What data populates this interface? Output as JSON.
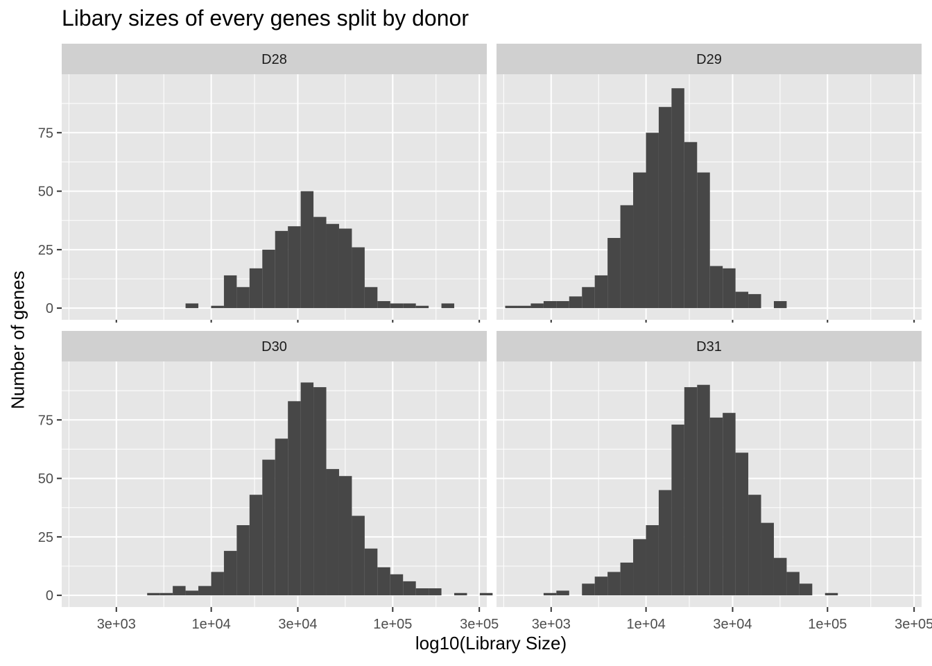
{
  "title": "Libary sizes of every genes split by donor",
  "xlabel": "log10(Library Size)",
  "ylabel": "Number of genes",
  "colors": {
    "bar": "#474747",
    "panel_bg": "#e6e6e6",
    "strip_bg": "#d0d0d0",
    "grid": "#ffffff"
  },
  "chart_data": {
    "type": "bar",
    "x_scale": "log10",
    "xlim": [
      1500,
      330000
    ],
    "ylim": [
      -5,
      100
    ],
    "x_ticks": [
      3000,
      10000,
      30000,
      100000,
      300000
    ],
    "x_tick_labels": [
      "3e+03",
      "1e+04",
      "3e+04",
      "1e+05",
      "3e+05"
    ],
    "y_ticks": [
      0,
      25,
      50,
      75
    ],
    "y_tick_labels": [
      "0",
      "25",
      "50",
      "75"
    ],
    "bin_start_log10": 3.224,
    "bin_width_log10": 0.0705,
    "panels": [
      {
        "name": "D28",
        "counts": [
          0,
          0,
          0,
          0,
          0,
          0,
          0,
          0,
          0,
          2,
          0,
          1,
          14,
          9,
          17,
          25,
          33,
          35,
          50,
          39,
          36,
          34,
          26,
          9,
          3,
          2,
          2,
          1,
          0,
          2
        ]
      },
      {
        "name": "D29",
        "counts": [
          1,
          1,
          2,
          3,
          3,
          5,
          9,
          14,
          30,
          44,
          58,
          75,
          86,
          94,
          71,
          58,
          18,
          17,
          7,
          6,
          0,
          3,
          0,
          0,
          0,
          0,
          0,
          0,
          0,
          0
        ]
      },
      {
        "name": "D30",
        "counts": [
          0,
          0,
          0,
          0,
          0,
          0,
          1,
          1,
          4,
          2,
          4,
          10,
          19,
          30,
          43,
          58,
          67,
          83,
          91,
          89,
          54,
          51,
          34,
          20,
          12,
          9,
          6,
          3,
          3,
          0,
          1,
          0,
          1
        ]
      },
      {
        "name": "D31",
        "counts": [
          0,
          0,
          0,
          1,
          2,
          0,
          5,
          8,
          10,
          14,
          24,
          30,
          45,
          73,
          89,
          90,
          76,
          78,
          61,
          43,
          31,
          16,
          10,
          5,
          0,
          1,
          0,
          0,
          0,
          0
        ]
      }
    ]
  }
}
